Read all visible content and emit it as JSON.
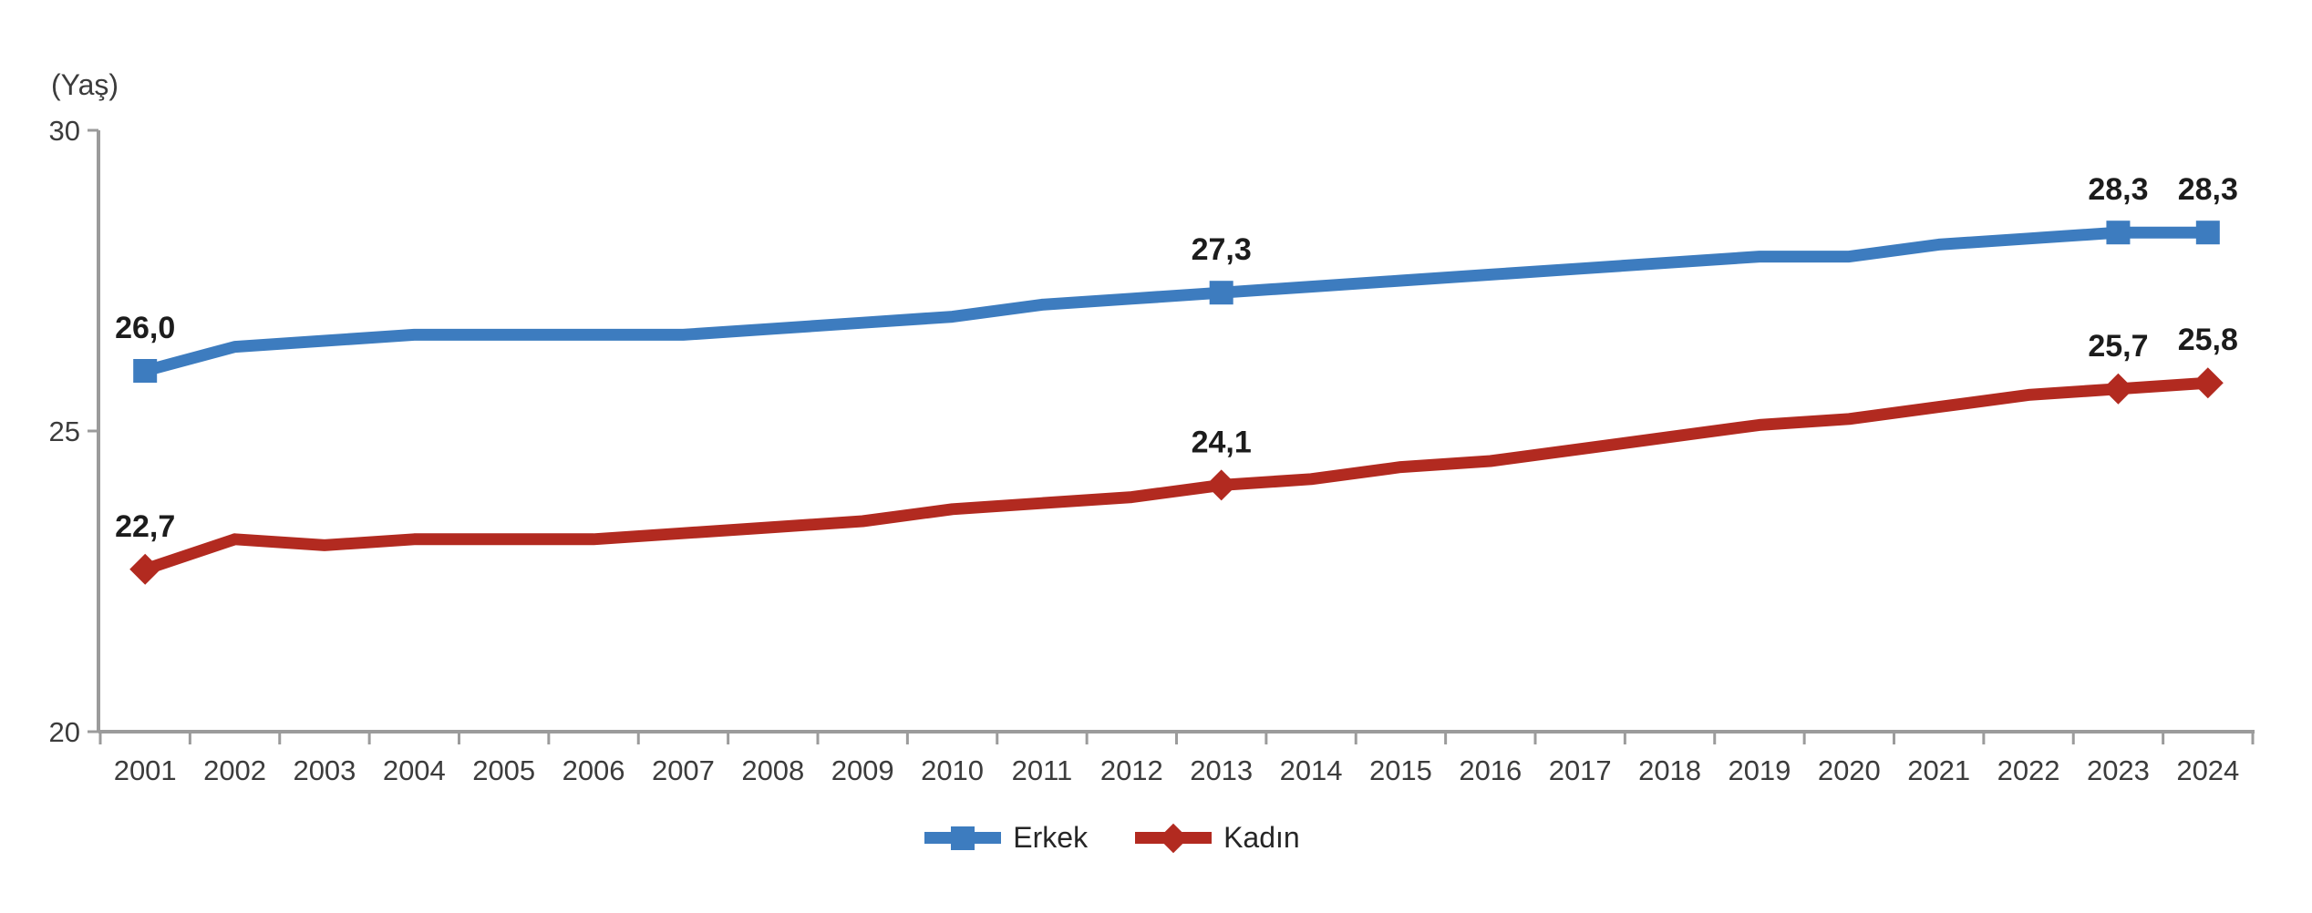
{
  "colors": {
    "male_series": "#3d7cbf",
    "female_series": "#b22a20",
    "axis_line": "#9b9b9b",
    "axis_text": "#3c3c3c",
    "label_text": "#1c1c1c"
  },
  "chart_data": {
    "type": "line",
    "title": "",
    "ylabel": "(Yaş)",
    "xlabel": "",
    "ylim": [
      20,
      30
    ],
    "yticks": [
      30,
      25,
      20
    ],
    "grid": false,
    "legend_position": "bottom",
    "decimal_separator": ",",
    "categories": [
      "2001",
      "2002",
      "2003",
      "2004",
      "2005",
      "2006",
      "2007",
      "2008",
      "2009",
      "2010",
      "2011",
      "2012",
      "2013",
      "2014",
      "2015",
      "2016",
      "2017",
      "2018",
      "2019",
      "2020",
      "2021",
      "2022",
      "2023",
      "2024"
    ],
    "series": [
      {
        "id": "erkek",
        "name": "Erkek",
        "color": "#3d7cbf",
        "marker": "square",
        "values": [
          26.0,
          26.4,
          26.5,
          26.6,
          26.6,
          26.6,
          26.6,
          26.7,
          26.8,
          26.9,
          27.1,
          27.2,
          27.3,
          27.4,
          27.5,
          27.6,
          27.7,
          27.8,
          27.9,
          27.9,
          28.1,
          28.2,
          28.3,
          28.3
        ],
        "point_labels": {
          "2001": "26,0",
          "2013": "27,3",
          "2023": "28,3",
          "2024": "28,3"
        }
      },
      {
        "id": "kadin",
        "name": "Kadın",
        "color": "#b22a20",
        "marker": "diamond",
        "values": [
          22.7,
          23.2,
          23.1,
          23.2,
          23.2,
          23.2,
          23.3,
          23.4,
          23.5,
          23.7,
          23.8,
          23.9,
          24.1,
          24.2,
          24.4,
          24.5,
          24.7,
          24.9,
          25.1,
          25.2,
          25.4,
          25.6,
          25.7,
          25.8
        ],
        "point_labels": {
          "2001": "22,7",
          "2013": "24,1",
          "2023": "25,7",
          "2024": "25,8"
        }
      }
    ]
  },
  "legend": {
    "items": [
      {
        "label": "Erkek"
      },
      {
        "label": "Kadın"
      }
    ]
  }
}
